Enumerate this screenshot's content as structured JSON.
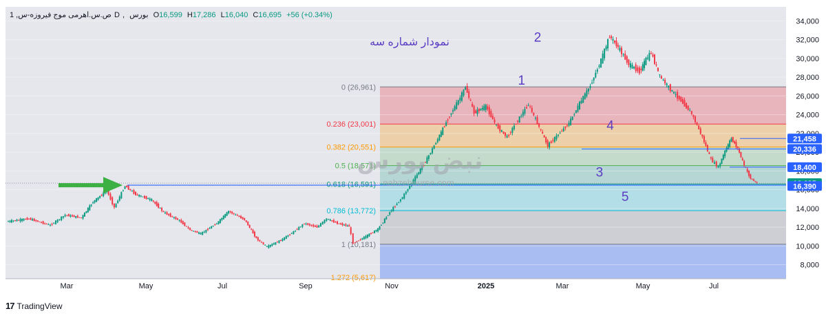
{
  "header": {
    "symbol": "1 ,ص.س.اهرمی موج فیروزه-س",
    "timeframe": "D",
    "exchange": "بورس",
    "o_label": "O",
    "o_value": "16,599",
    "h_label": "H",
    "h_value": "17,286",
    "l_label": "L",
    "l_value": "16,040",
    "c_label": "C",
    "c_value": "16,695",
    "change": "+56 (+0.34%)"
  },
  "annotation_title": "نمودار شماره سه",
  "watermark": {
    "brand": "نبض بورس",
    "url": "nabzebourse.com"
  },
  "footer": {
    "brand": "TradingView"
  },
  "colors": {
    "up": "#089981",
    "down": "#f23645",
    "wave_labels": "#5b3cc4",
    "arrow": "#3cb043",
    "hline": "#2962ff"
  },
  "chart_data": {
    "type": "candlestick",
    "y_axis": {
      "ticks": [
        8000,
        10000,
        12000,
        14000,
        16000,
        18000,
        20000,
        22000,
        24000,
        26000,
        28000,
        30000,
        32000,
        34000
      ],
      "tick_labels": [
        "8,000",
        "10,000",
        "12,000",
        "14,000",
        "16,000",
        "18,000",
        "20,000",
        "22,000",
        "24,000",
        "26,000",
        "28,000",
        "30,000",
        "32,000",
        "34,000"
      ],
      "range": [
        6500,
        35500
      ]
    },
    "x_axis": {
      "labels": [
        "Mar",
        "May",
        "Jul",
        "Sep",
        "Nov",
        "2025",
        "Mar",
        "May",
        "Jul"
      ],
      "bold": [
        false,
        false,
        false,
        false,
        false,
        true,
        false,
        false,
        false
      ]
    },
    "fib_levels": [
      {
        "label": "0 (26,961)",
        "value": 26961,
        "color": "#787b86"
      },
      {
        "label": "0.236 (23,001)",
        "value": 23001,
        "color": "#f23645"
      },
      {
        "label": "0.382 (20,551)",
        "value": 20551,
        "color": "#ff9800"
      },
      {
        "label": "0.5 (18,571)",
        "value": 18571,
        "color": "#4caf50"
      },
      {
        "label": "0.618 (16,591)",
        "value": 16591,
        "color": "#089981"
      },
      {
        "label": "0.786 (13,772)",
        "value": 13772,
        "color": "#00bcd4"
      },
      {
        "label": "1 (10,181)",
        "value": 10181,
        "color": "#787b86"
      },
      {
        "label": "1.272 (5,617)",
        "value": 5617,
        "color": "#ff9800"
      }
    ],
    "price_labels": [
      {
        "text": "21,458",
        "value": 21458
      },
      {
        "text": "20,336",
        "value": 20336
      },
      {
        "text": "18,400",
        "value": 18400
      },
      {
        "text": "16,695",
        "value": 16695
      },
      {
        "text": "16,390",
        "value": 16390
      }
    ],
    "wave_labels": [
      {
        "text": "1",
        "x": "2025-05-10",
        "y": 27200
      },
      {
        "text": "2",
        "x": "2025-05-25",
        "y": 31800
      },
      {
        "text": "3",
        "x": "2025-07-22",
        "y": 17400
      },
      {
        "text": "4",
        "x": "2025-08-01",
        "y": 22400
      },
      {
        "text": "5",
        "x": "2025-08-15",
        "y": 14800
      }
    ],
    "ohlc_path": [
      [
        "2024-01-15",
        12600
      ],
      [
        "2024-02-05",
        12900
      ],
      [
        "2024-02-25",
        12200
      ],
      [
        "2024-03-10",
        13300
      ],
      [
        "2024-03-25",
        13000
      ],
      [
        "2024-04-05",
        14700
      ],
      [
        "2024-04-18",
        15900
      ],
      [
        "2024-04-25",
        14100
      ],
      [
        "2024-05-05",
        16400
      ],
      [
        "2024-05-15",
        15500
      ],
      [
        "2024-05-30",
        14900
      ],
      [
        "2024-06-10",
        13600
      ],
      [
        "2024-06-25",
        12700
      ],
      [
        "2024-07-05",
        11700
      ],
      [
        "2024-07-15",
        11300
      ],
      [
        "2024-07-30",
        12400
      ],
      [
        "2024-08-10",
        13700
      ],
      [
        "2024-08-25",
        12800
      ],
      [
        "2024-09-05",
        10800
      ],
      [
        "2024-09-15",
        9900
      ],
      [
        "2024-09-28",
        10600
      ],
      [
        "2024-10-10",
        11500
      ],
      [
        "2024-10-20",
        12400
      ],
      [
        "2024-11-01",
        12000
      ],
      [
        "2024-11-10",
        12900
      ],
      [
        "2024-11-20",
        12400
      ],
      [
        "2024-12-01",
        12100
      ],
      [
        "2024-12-05",
        10300
      ],
      [
        "2024-12-15",
        10900
      ],
      [
        "2024-12-28",
        11800
      ],
      [
        "2025-01-08",
        13600
      ],
      [
        "2025-01-20",
        15200
      ],
      [
        "2025-02-01",
        17300
      ],
      [
        "2025-02-12",
        19300
      ],
      [
        "2025-02-22",
        21400
      ],
      [
        "2025-03-05",
        23900
      ],
      [
        "2025-03-15",
        25800
      ],
      [
        "2025-03-20",
        26961
      ],
      [
        "2025-03-28",
        24200
      ],
      [
        "2025-04-08",
        24900
      ],
      [
        "2025-04-18",
        22800
      ],
      [
        "2025-04-28",
        21600
      ],
      [
        "2025-05-08",
        23400
      ],
      [
        "2025-05-18",
        25100
      ],
      [
        "2025-05-28",
        22700
      ],
      [
        "2025-06-05",
        20700
      ],
      [
        "2025-06-15",
        21900
      ],
      [
        "2025-06-25",
        23100
      ],
      [
        "2025-07-05",
        25200
      ],
      [
        "2025-07-15",
        27100
      ],
      [
        "2025-07-25",
        29800
      ],
      [
        "2025-08-02",
        32400
      ],
      [
        "2025-08-10",
        31200
      ],
      [
        "2025-08-20",
        29400
      ],
      [
        "2025-08-30",
        28600
      ],
      [
        "2025-09-05",
        29900
      ],
      [
        "2025-09-10",
        30600
      ],
      [
        "2025-09-18",
        28100
      ],
      [
        "2025-09-28",
        26700
      ],
      [
        "2025-10-08",
        25500
      ],
      [
        "2025-10-18",
        24100
      ],
      [
        "2025-10-28",
        21600
      ],
      [
        "2025-11-05",
        19200
      ],
      [
        "2025-11-12",
        18400
      ],
      [
        "2025-11-18",
        20100
      ],
      [
        "2025-11-24",
        21458
      ],
      [
        "2025-11-30",
        20400
      ],
      [
        "2025-12-06",
        18600
      ],
      [
        "2025-12-12",
        17200
      ],
      [
        "2025-12-18",
        16695
      ]
    ]
  }
}
